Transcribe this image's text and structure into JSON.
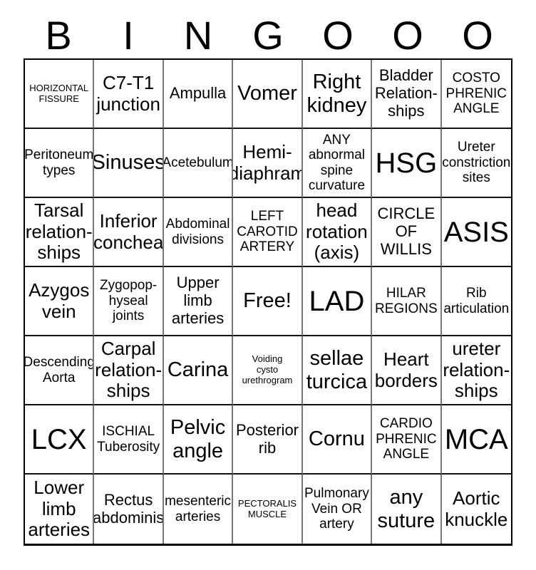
{
  "header": {
    "letters": [
      "B",
      "I",
      "N",
      "G",
      "O",
      "O",
      "O"
    ]
  },
  "grid": {
    "rows": 7,
    "cols": 7,
    "free_space_index": 24,
    "cells": [
      {
        "text": "HORIZONTAL\nFISSURE",
        "size": "xs"
      },
      {
        "text": "C7-T1\njunction",
        "size": "lg"
      },
      {
        "text": "Ampulla",
        "size": "md"
      },
      {
        "text": "Vomer",
        "size": "xl"
      },
      {
        "text": "Right\nkidney",
        "size": "xl"
      },
      {
        "text": "Bladder\nRelation-\nships",
        "size": "md"
      },
      {
        "text": "COSTO\nPHRENIC\nANGLE",
        "size": "sm"
      },
      {
        "text": "Peritoneum\ntypes",
        "size": "sm"
      },
      {
        "text": "Sinuses",
        "size": "xl"
      },
      {
        "text": "Acetebulum",
        "size": "sm"
      },
      {
        "text": "Hemi-\ndiaphram",
        "size": "lg"
      },
      {
        "text": "ANY\nabnormal\nspine\ncurvature",
        "size": "sm"
      },
      {
        "text": "HSG",
        "size": "xxl"
      },
      {
        "text": "Ureter\nconstriction\nsites",
        "size": "sm"
      },
      {
        "text": "Tarsal\nrelation-\nships",
        "size": "lg"
      },
      {
        "text": "Inferior\nconchea",
        "size": "lg"
      },
      {
        "text": "Abdominal\ndivisions",
        "size": "sm"
      },
      {
        "text": "LEFT\nCAROTID\nARTERY",
        "size": "sm"
      },
      {
        "text": "head\nrotation\n(axis)",
        "size": "lg"
      },
      {
        "text": "CIRCLE\nOF\nWILLIS",
        "size": "md"
      },
      {
        "text": "ASIS",
        "size": "xxl"
      },
      {
        "text": "Azygos\nvein",
        "size": "lg"
      },
      {
        "text": "Zygopop-\nhyseal\njoints",
        "size": "sm"
      },
      {
        "text": "Upper\nlimb\narteries",
        "size": "md"
      },
      {
        "text": "Free!",
        "size": "xl"
      },
      {
        "text": "LAD",
        "size": "xxl"
      },
      {
        "text": "HILAR\nREGIONS",
        "size": "sm"
      },
      {
        "text": "Rib\narticulation",
        "size": "sm"
      },
      {
        "text": "Descending\nAorta",
        "size": "sm"
      },
      {
        "text": "Carpal\nrelation-\nships",
        "size": "lg"
      },
      {
        "text": "Carina",
        "size": "xl"
      },
      {
        "text": "Voiding\ncysto\nurethrogram",
        "size": "xs"
      },
      {
        "text": "sellae\nturcica",
        "size": "xl"
      },
      {
        "text": "Heart\nborders",
        "size": "lg"
      },
      {
        "text": "ureter\nrelation-\nships",
        "size": "lg"
      },
      {
        "text": "LCX",
        "size": "xxl"
      },
      {
        "text": "ISCHIAL\nTuberosity",
        "size": "sm"
      },
      {
        "text": "Pelvic\nangle",
        "size": "xl"
      },
      {
        "text": "Posterior\nrib",
        "size": "md"
      },
      {
        "text": "Cornu",
        "size": "xl"
      },
      {
        "text": "CARDIO\nPHRENIC\nANGLE",
        "size": "sm"
      },
      {
        "text": "MCA",
        "size": "xxl"
      },
      {
        "text": "Lower\nlimb\narteries",
        "size": "lg"
      },
      {
        "text": "Rectus\nabdominis",
        "size": "md"
      },
      {
        "text": "mesenteric\narteries",
        "size": "sm"
      },
      {
        "text": "PECTORALIS\nMUSCLE",
        "size": "xs"
      },
      {
        "text": "Pulmonary\nVein OR\nartery",
        "size": "sm"
      },
      {
        "text": "any\nsuture",
        "size": "xl"
      },
      {
        "text": "Aortic\nknuckle",
        "size": "lg"
      }
    ]
  },
  "colors": {
    "background": "#ffffff",
    "text": "#000000",
    "outer_border": "#000000",
    "vertical_grid_line": "#777777",
    "horizontal_grid_line": "#111111"
  }
}
